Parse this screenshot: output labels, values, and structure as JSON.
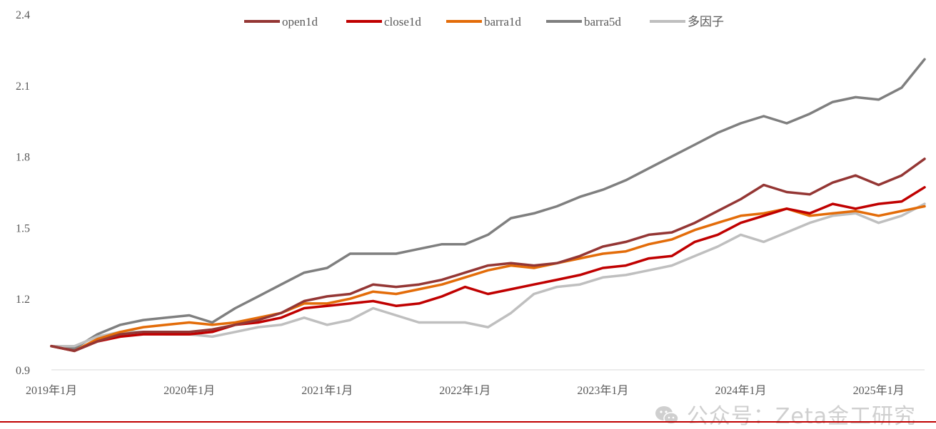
{
  "chart_data": {
    "type": "line",
    "title": "",
    "xlabel": "",
    "ylabel": "",
    "ylim": [
      0.9,
      2.4
    ],
    "y_ticks": [
      "0.9",
      "1.2",
      "1.5",
      "1.8",
      "2.1",
      "2.4"
    ],
    "x_tick_labels": [
      "2019年1月",
      "2020年1月",
      "2021年1月",
      "2022年1月",
      "2023年1月",
      "2024年1月",
      "2025年1月"
    ],
    "x": [
      "2019-01",
      "2019-03",
      "2019-05",
      "2019-07",
      "2019-09",
      "2019-11",
      "2020-01",
      "2020-03",
      "2020-05",
      "2020-07",
      "2020-09",
      "2020-11",
      "2021-01",
      "2021-03",
      "2021-05",
      "2021-07",
      "2021-09",
      "2021-11",
      "2022-01",
      "2022-03",
      "2022-05",
      "2022-07",
      "2022-09",
      "2022-11",
      "2023-01",
      "2023-03",
      "2023-05",
      "2023-07",
      "2023-09",
      "2023-11",
      "2024-01",
      "2024-03",
      "2024-05",
      "2024-07",
      "2024-09",
      "2024-11",
      "2025-01",
      "2025-03",
      "2025-05"
    ],
    "grid": false,
    "legend_position": "top-center",
    "series": [
      {
        "name": "open1d",
        "color": "#943634",
        "values": [
          1.0,
          0.98,
          1.02,
          1.05,
          1.06,
          1.06,
          1.06,
          1.07,
          1.09,
          1.11,
          1.14,
          1.19,
          1.21,
          1.22,
          1.26,
          1.25,
          1.26,
          1.28,
          1.31,
          1.34,
          1.35,
          1.34,
          1.35,
          1.38,
          1.42,
          1.44,
          1.47,
          1.48,
          1.52,
          1.57,
          1.62,
          1.68,
          1.65,
          1.64,
          1.69,
          1.72,
          1.68,
          1.72,
          1.79
        ]
      },
      {
        "name": "close1d",
        "color": "#c00000",
        "values": [
          1.0,
          0.98,
          1.02,
          1.04,
          1.05,
          1.05,
          1.05,
          1.06,
          1.09,
          1.1,
          1.12,
          1.16,
          1.17,
          1.18,
          1.19,
          1.17,
          1.18,
          1.21,
          1.25,
          1.22,
          1.24,
          1.26,
          1.28,
          1.3,
          1.33,
          1.34,
          1.37,
          1.38,
          1.44,
          1.47,
          1.52,
          1.55,
          1.58,
          1.56,
          1.6,
          1.58,
          1.6,
          1.61,
          1.67
        ]
      },
      {
        "name": "barra1d",
        "color": "#e36c09",
        "values": [
          1.0,
          0.98,
          1.03,
          1.06,
          1.08,
          1.09,
          1.1,
          1.09,
          1.1,
          1.12,
          1.14,
          1.18,
          1.18,
          1.2,
          1.23,
          1.22,
          1.24,
          1.26,
          1.29,
          1.32,
          1.34,
          1.33,
          1.35,
          1.37,
          1.39,
          1.4,
          1.43,
          1.45,
          1.49,
          1.52,
          1.55,
          1.56,
          1.58,
          1.55,
          1.56,
          1.57,
          1.55,
          1.57,
          1.59
        ]
      },
      {
        "name": "barra5d",
        "color": "#7f7f7f",
        "values": [
          1.0,
          0.99,
          1.05,
          1.09,
          1.11,
          1.12,
          1.13,
          1.1,
          1.16,
          1.21,
          1.26,
          1.31,
          1.33,
          1.39,
          1.39,
          1.39,
          1.41,
          1.43,
          1.43,
          1.47,
          1.54,
          1.56,
          1.59,
          1.63,
          1.66,
          1.7,
          1.75,
          1.8,
          1.85,
          1.9,
          1.94,
          1.97,
          1.94,
          1.98,
          2.03,
          2.05,
          2.04,
          2.09,
          2.21
        ]
      },
      {
        "name": "多因子",
        "color": "#bfbfbf",
        "values": [
          1.0,
          1.0,
          1.04,
          1.06,
          1.06,
          1.05,
          1.05,
          1.04,
          1.06,
          1.08,
          1.09,
          1.12,
          1.09,
          1.11,
          1.16,
          1.13,
          1.1,
          1.1,
          1.1,
          1.08,
          1.14,
          1.22,
          1.25,
          1.26,
          1.29,
          1.3,
          1.32,
          1.34,
          1.38,
          1.42,
          1.47,
          1.44,
          1.48,
          1.52,
          1.55,
          1.56,
          1.52,
          1.55,
          1.6
        ]
      }
    ]
  },
  "watermark": {
    "text": "公众号：Zeta金工研究",
    "icon": "wechat-icon"
  }
}
